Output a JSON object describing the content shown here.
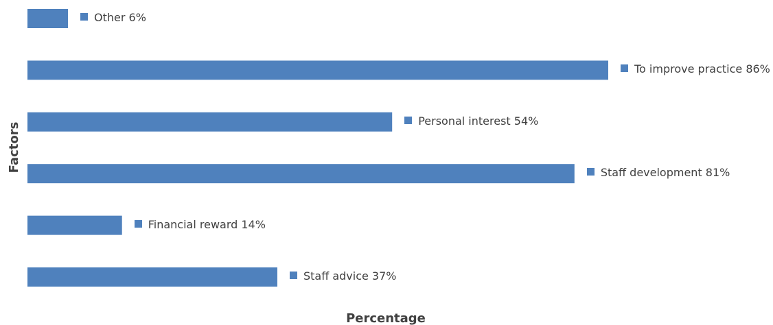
{
  "chart_data": {
    "type": "bar",
    "orientation": "horizontal",
    "x_label": "Percentage",
    "y_label": "Factors",
    "values": [
      6,
      86,
      54,
      81,
      14,
      37
    ],
    "value_labels": [
      "Other 6%",
      "To improve practice 86%",
      "Personal interest 54%",
      "Staff development 81%",
      "Financial reward 14%",
      "Staff advice 37%"
    ],
    "color": "#4f81bd"
  }
}
